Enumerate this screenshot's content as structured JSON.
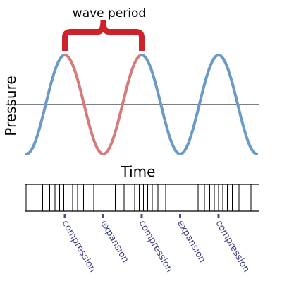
{
  "labels": {
    "wave_period": "wave period",
    "pressure": "Pressure",
    "time": "Time"
  },
  "markers": [
    {
      "label": "compression",
      "phase": 0.0
    },
    {
      "label": "expansion",
      "phase": 0.5
    },
    {
      "label": "compression",
      "phase": 1.0
    },
    {
      "label": "expansion",
      "phase": 1.5
    },
    {
      "label": "compression",
      "phase": 2.0
    }
  ],
  "wave": {
    "cycles": 2.5,
    "highlighted_period": [
      0.0,
      1.0
    ]
  },
  "colors": {
    "wave": "#6c9ac7",
    "highlight": "#d67a7a",
    "brace": "#cc2229",
    "marker_text": "#3e3e8a",
    "marker_tick": "#4a4a8a",
    "line": "#000000"
  }
}
